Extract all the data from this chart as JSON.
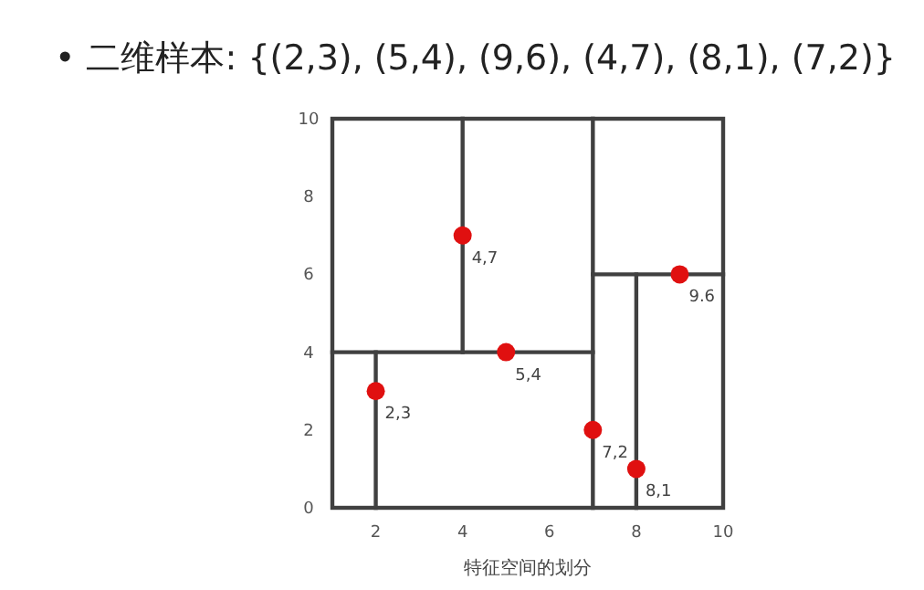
{
  "chart_data": {
    "type": "scatter",
    "title": "• 二维样本: {(2,3), (5,4), (9,6), (4,7), (8,1), (7,2)}",
    "xlabel": "特征空间的划分",
    "xlim": [
      1,
      10
    ],
    "ylim": [
      0,
      10
    ],
    "xticks": [
      2,
      4,
      6,
      8,
      10
    ],
    "yticks": [
      0,
      2,
      4,
      6,
      8,
      10
    ],
    "grid": false,
    "marker": "circle",
    "annotations": [
      {
        "text": "2,3",
        "x": 2,
        "y": 3
      },
      {
        "text": "5,4",
        "x": 5,
        "y": 4
      },
      {
        "text": "9.6",
        "x": 9,
        "y": 6
      },
      {
        "text": "4,7",
        "x": 4,
        "y": 7
      },
      {
        "text": "8,1",
        "x": 8,
        "y": 1
      },
      {
        "text": "7,2",
        "x": 7,
        "y": 2
      }
    ],
    "series": [
      {
        "type": "scatter",
        "color": "#e01010",
        "x": [
          2,
          5,
          9,
          4,
          8,
          7
        ],
        "values": [
          3,
          4,
          6,
          7,
          1,
          2
        ]
      },
      {
        "type": "line",
        "marker": "none",
        "color": "#404040",
        "x": [
          7,
          7
        ],
        "values": [
          0,
          10
        ]
      },
      {
        "type": "line",
        "marker": "none",
        "color": "#404040",
        "x": [
          1,
          7
        ],
        "values": [
          4,
          4
        ]
      },
      {
        "type": "line",
        "marker": "none",
        "color": "#404040",
        "x": [
          4,
          4
        ],
        "values": [
          4,
          10
        ]
      },
      {
        "type": "line",
        "marker": "none",
        "color": "#404040",
        "x": [
          2,
          2
        ],
        "values": [
          0,
          4
        ]
      },
      {
        "type": "line",
        "marker": "none",
        "color": "#404040",
        "x": [
          7,
          10
        ],
        "values": [
          6,
          6
        ]
      },
      {
        "type": "line",
        "marker": "none",
        "color": "#404040",
        "x": [
          8,
          8
        ],
        "values": [
          0,
          6
        ]
      }
    ]
  }
}
